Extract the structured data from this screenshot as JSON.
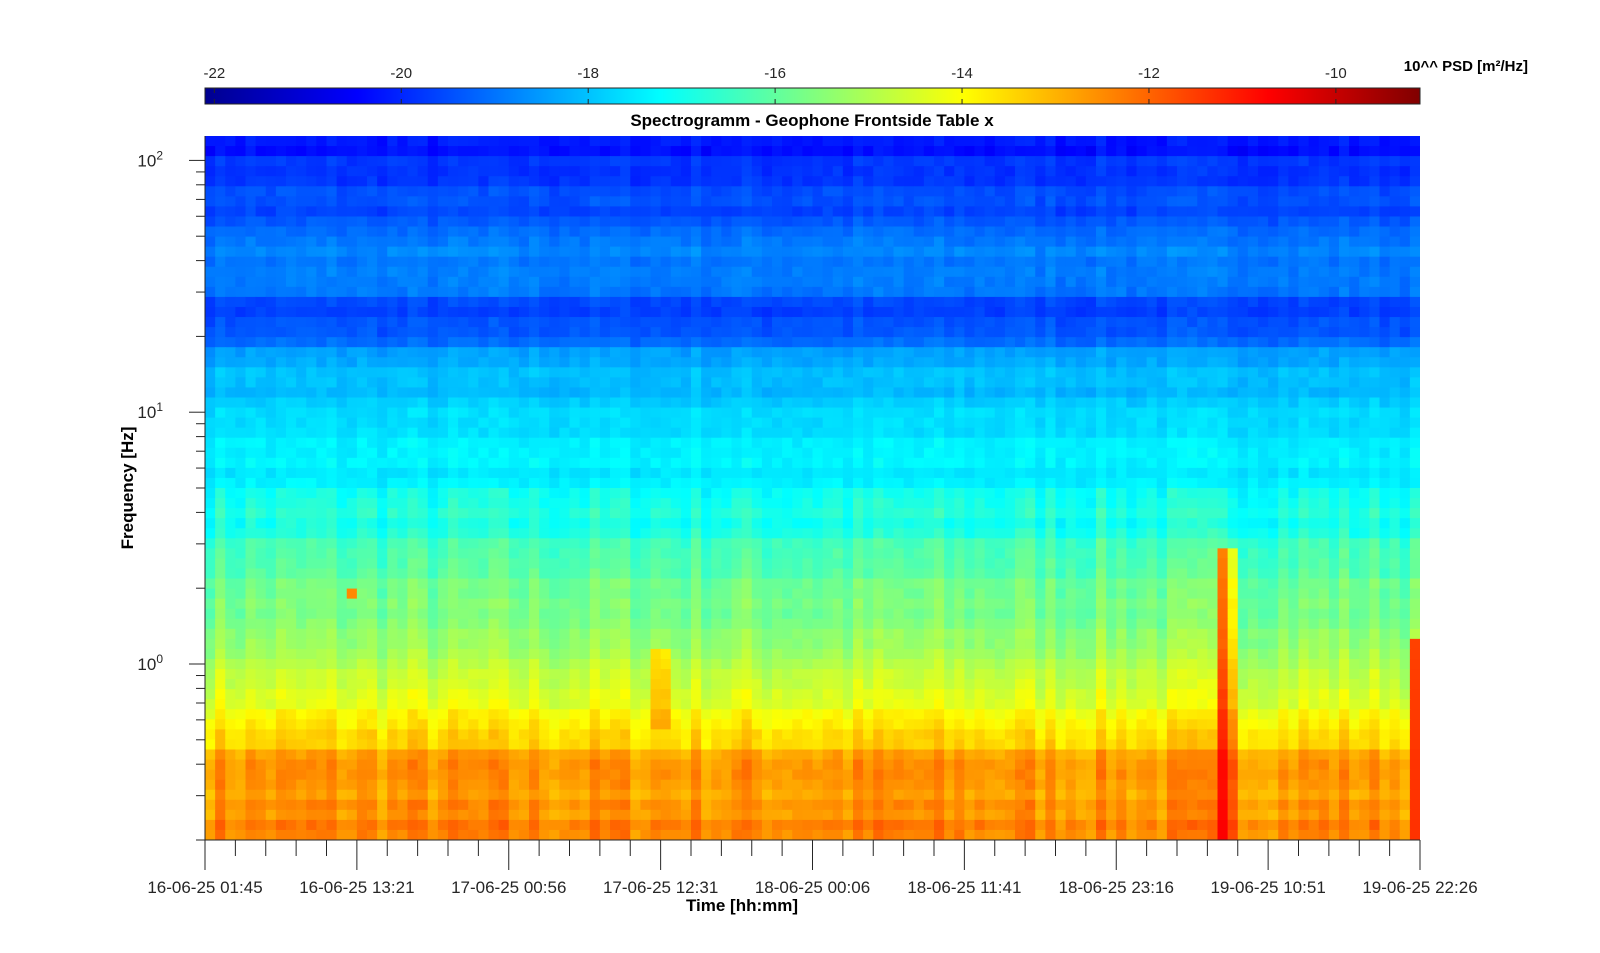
{
  "chart_data": {
    "type": "heatmap",
    "title": "Spectrogramm - Geophone Frontside Table x",
    "xlabel": "Time [hh:mm]",
    "ylabel": "Frequency [Hz]",
    "yscale": "log",
    "ylim": [
      0.2,
      125
    ],
    "y_ticks": [
      {
        "value": 100,
        "base": "10",
        "exp": "2"
      },
      {
        "value": 10,
        "base": "10",
        "exp": "1"
      },
      {
        "value": 1,
        "base": "10",
        "exp": "0"
      }
    ],
    "x_ticks": [
      "16-06-25 01:45",
      "16-06-25 13:21",
      "17-06-25 00:56",
      "17-06-25 12:31",
      "18-06-25 00:06",
      "18-06-25 11:41",
      "18-06-25 23:16",
      "19-06-25 10:51",
      "19-06-25 22:26"
    ],
    "xlim": [
      "16-06-25 01:45",
      "19-06-25 22:26"
    ],
    "grid": false,
    "colormap": "jet",
    "colorbar": {
      "label": "10^^ PSD [m²/Hz]",
      "orientation": "horizontal",
      "location": "top",
      "range": [
        -22.1,
        -9.1
      ],
      "ticks": [
        "-22",
        "-20",
        "-18",
        "-16",
        "-14",
        "-12",
        "-10"
      ],
      "tick_values": [
        -22,
        -20,
        -18,
        -16,
        -14,
        -12,
        -10
      ]
    },
    "psd_profile": {
      "frequency_hz": [
        125,
        100,
        60,
        35,
        25,
        15,
        10,
        6,
        4,
        2,
        1,
        0.6,
        0.4,
        0.2
      ],
      "log10_psd": [
        -20.3,
        -20.0,
        -19.4,
        -18.6,
        -19.6,
        -18.3,
        -17.6,
        -17.4,
        -17.0,
        -15.8,
        -15.0,
        -14.0,
        -12.7,
        -12.4
      ]
    },
    "events": [
      {
        "time": "19-06-25 07:40",
        "frequency_range_hz": [
          0.2,
          2.8
        ],
        "log10_psd": -9.6
      },
      {
        "time": "19-06-25 22:00",
        "frequency_range_hz": [
          0.2,
          1.3
        ],
        "log10_psd": -11.3
      },
      {
        "time": "17-06-25 12:30",
        "frequency_range_hz": [
          0.6,
          1.2
        ],
        "log10_psd": -11.8
      },
      {
        "time": "16-06-25 13:00",
        "frequency_range_hz": [
          1.85,
          1.95
        ],
        "log10_psd": -12.2
      }
    ]
  }
}
